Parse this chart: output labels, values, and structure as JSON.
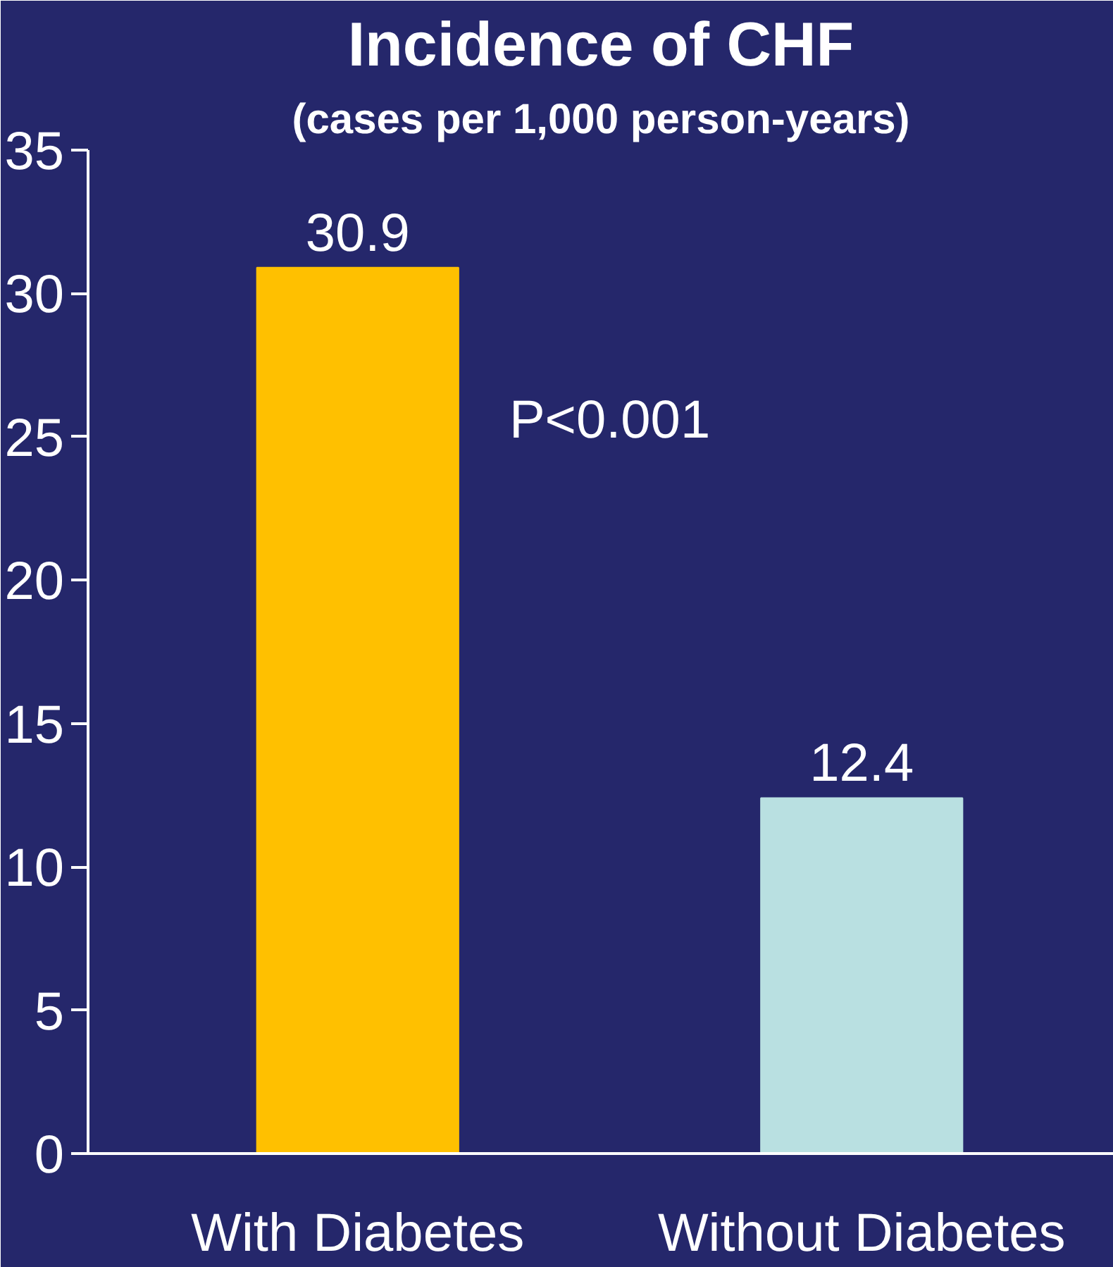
{
  "chart_data": {
    "type": "bar",
    "title": "Incidence of CHF",
    "subtitle": "(cases per 1,000 person-years)",
    "categories": [
      "With Diabetes",
      "Without Diabetes"
    ],
    "values": [
      30.9,
      12.4
    ],
    "colors": [
      "#ffc000",
      "#b9e0e1"
    ],
    "ylim": [
      0,
      35
    ],
    "yticks": [
      0,
      5,
      10,
      15,
      20,
      25,
      30,
      35
    ],
    "data_labels": true,
    "grid": false,
    "annotations": [
      "P<0.001"
    ]
  }
}
